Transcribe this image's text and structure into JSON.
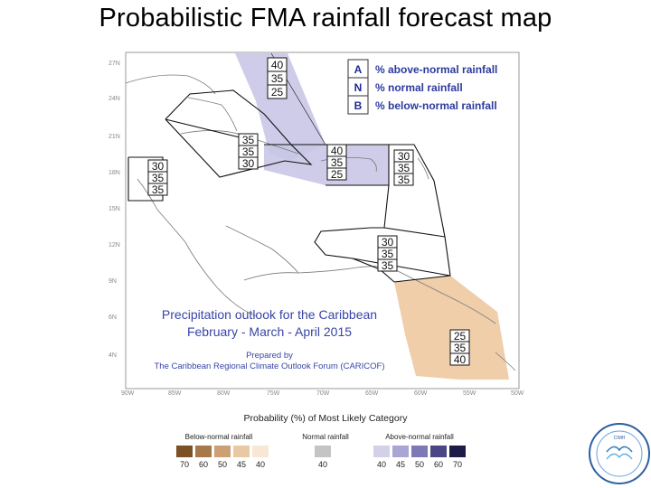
{
  "title": "Probabilistic FMA rainfall forecast map",
  "map": {
    "lat_labels": [
      "27N",
      "24N",
      "21N",
      "18N",
      "15N",
      "12N",
      "9N",
      "6N",
      "4N"
    ],
    "lon_labels": [
      "90W",
      "85W",
      "80W",
      "75W",
      "70W",
      "65W",
      "60W",
      "55W",
      "50W"
    ],
    "key": [
      {
        "letter": "A",
        "text": "% above-normal rainfall"
      },
      {
        "letter": "N",
        "text": "% normal rainfall"
      },
      {
        "letter": "B",
        "text": "% below-normal rainfall"
      }
    ],
    "zones": [
      {
        "id": "bahamas",
        "values": [
          "40",
          "35",
          "25"
        ],
        "category": "above"
      },
      {
        "id": "cuba",
        "values": [
          "35",
          "35",
          "30"
        ],
        "category": "normal"
      },
      {
        "id": "greater-antilles",
        "values": [
          "40",
          "35",
          "25"
        ],
        "category": "above"
      },
      {
        "id": "central-america",
        "values": [
          "30",
          "35",
          "35"
        ],
        "category": "normal"
      },
      {
        "id": "lesser-antilles",
        "values": [
          "30",
          "35",
          "35"
        ],
        "category": "normal"
      },
      {
        "id": "southern-caribbean",
        "values": [
          "30",
          "35",
          "35"
        ],
        "category": "normal"
      },
      {
        "id": "guianas",
        "values": [
          "25",
          "35",
          "40"
        ],
        "category": "below"
      }
    ],
    "outlook_line1": "Precipitation outlook for the Caribbean",
    "outlook_line2": "February - March - April 2015",
    "prepared_line1": "Prepared by",
    "prepared_line2": "The Caribbean Regional Climate Outlook Forum (CARICOF)",
    "colors": {
      "above": "#c9c6e6",
      "below": "#edc9a0",
      "border": "#111111"
    }
  },
  "legend": {
    "title": "Probability (%) of Most Likely Category",
    "below_label": "Below-normal rainfall",
    "normal_label": "Normal rainfall",
    "above_label": "Above-normal rainfall",
    "below": [
      {
        "value": "70",
        "color": "#7a5226"
      },
      {
        "value": "60",
        "color": "#a7794a"
      },
      {
        "value": "50",
        "color": "#cca074"
      },
      {
        "value": "45",
        "color": "#e9c9a3"
      },
      {
        "value": "40",
        "color": "#f7e7d4"
      }
    ],
    "normal": [
      {
        "value": "40",
        "color": "#c4c4c4"
      }
    ],
    "above": [
      {
        "value": "40",
        "color": "#d3d1ea"
      },
      {
        "value": "45",
        "color": "#a9a6d4"
      },
      {
        "value": "50",
        "color": "#7d79b6"
      },
      {
        "value": "60",
        "color": "#4b4784"
      },
      {
        "value": "70",
        "color": "#1c1b4a"
      }
    ]
  },
  "logo": {
    "text": "Caribbean Institute for Meteorology and Hydrology",
    "abbr": "CIMH"
  }
}
